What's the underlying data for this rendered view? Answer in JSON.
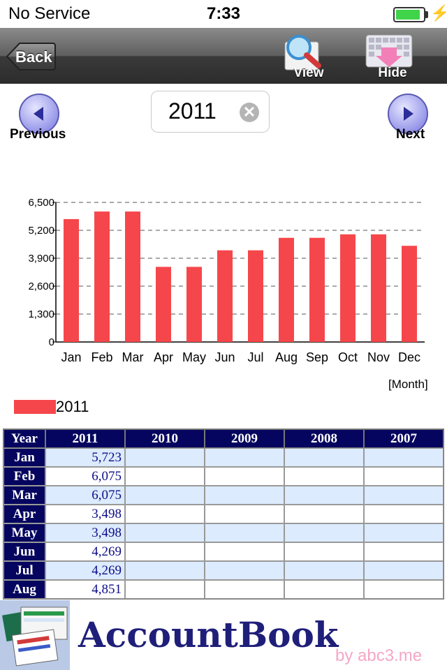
{
  "status_bar": {
    "carrier": "No Service",
    "time": "7:33",
    "battery_percent": 90
  },
  "toolbar": {
    "back_label": "Back",
    "view_label": "View",
    "hide_label": "Hide"
  },
  "year_nav": {
    "year_value": "2011",
    "previous_label": "Previous",
    "next_label": "Next"
  },
  "chart_data": {
    "type": "bar",
    "categories": [
      "Jan",
      "Feb",
      "Mar",
      "Apr",
      "May",
      "Jun",
      "Jul",
      "Aug",
      "Sep",
      "Oct",
      "Nov",
      "Dec"
    ],
    "series": [
      {
        "name": "2011",
        "values": [
          5723,
          6075,
          6075,
          3498,
          3498,
          4269,
          4269,
          4851,
          4851,
          5013,
          5013,
          4478
        ]
      }
    ],
    "y_ticks": [
      "0",
      "1,300",
      "2,600",
      "3,900",
      "5,200",
      "6,500"
    ],
    "ylim": [
      0,
      6500
    ],
    "xlabel": "[Month]",
    "bar_color": "#f5474b",
    "grid": "dashed horizontal",
    "legend": "bottom-left"
  },
  "table": {
    "headers": [
      "Year",
      "2011",
      "2010",
      "2009",
      "2008",
      "2007"
    ],
    "rows": [
      {
        "month": "Jan",
        "cells": [
          "5,723",
          "",
          "",
          "",
          ""
        ]
      },
      {
        "month": "Feb",
        "cells": [
          "6,075",
          "",
          "",
          "",
          ""
        ]
      },
      {
        "month": "Mar",
        "cells": [
          "6,075",
          "",
          "",
          "",
          ""
        ]
      },
      {
        "month": "Apr",
        "cells": [
          "3,498",
          "",
          "",
          "",
          ""
        ]
      },
      {
        "month": "May",
        "cells": [
          "3,498",
          "",
          "",
          "",
          ""
        ]
      },
      {
        "month": "Jun",
        "cells": [
          "4,269",
          "",
          "",
          "",
          ""
        ]
      },
      {
        "month": "Jul",
        "cells": [
          "4,269",
          "",
          "",
          "",
          ""
        ]
      },
      {
        "month": "Aug",
        "cells": [
          "4,851",
          "",
          "",
          "",
          ""
        ]
      }
    ]
  },
  "banner": {
    "app_name": "AccountBook",
    "credit": "by abc3.me"
  },
  "icons": {
    "back": "back-arrow-icon",
    "view": "magnifier-icon",
    "hide": "keyboard-hide-icon",
    "previous": "arrow-left-circle-icon",
    "next": "arrow-right-circle-icon",
    "clear": "clear-circle-icon",
    "app": "app-icon-spreadsheet",
    "charging": "bolt-icon"
  },
  "colors": {
    "toolbar": "#3a3a3a",
    "table_header": "#05055f",
    "row_shade": "#dcebfd",
    "bar": "#f5474b",
    "app_name": "#1f1f7a",
    "credit": "#f4a7c6",
    "battery": "#3fd44a"
  }
}
